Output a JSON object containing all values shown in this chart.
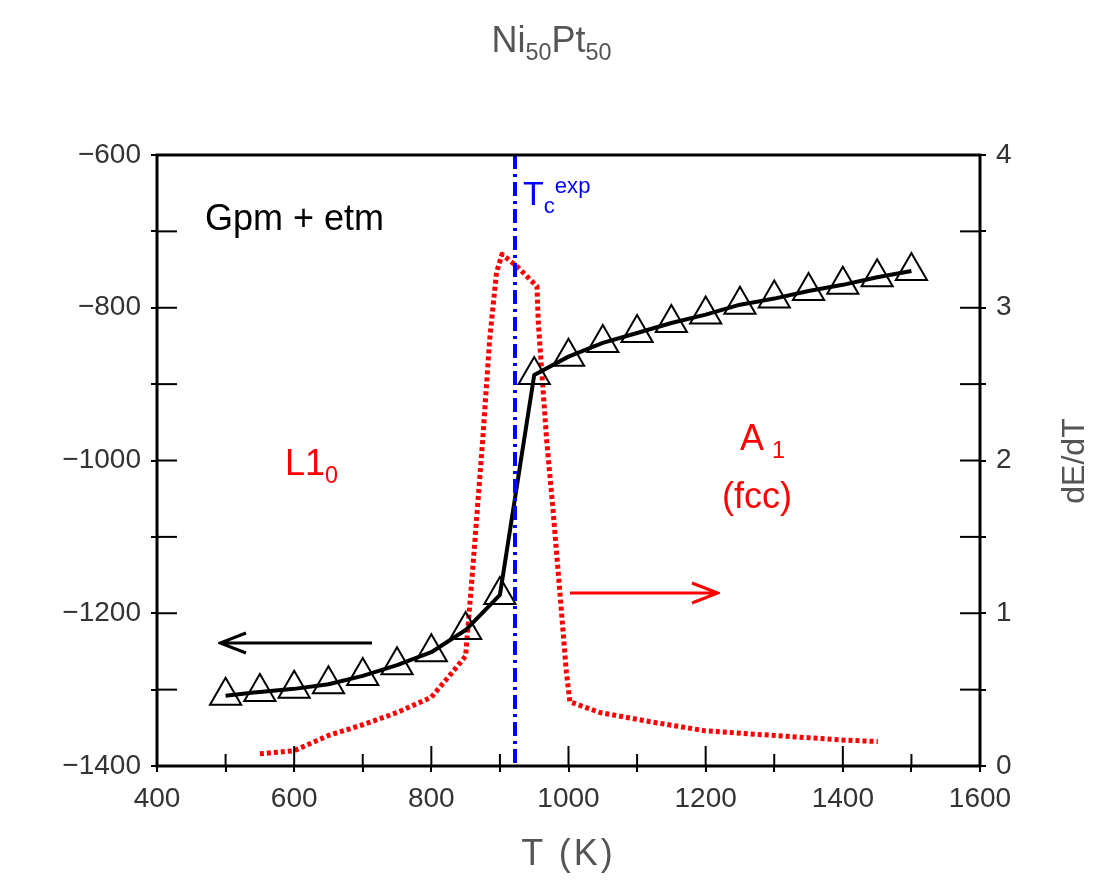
{
  "chart_data": {
    "type": "line",
    "title": "Ni$_{50}$Pt$_{50}$",
    "xlabel": "T (K)",
    "y2label": "dE/dT",
    "xlim": [
      400,
      1600
    ],
    "xticks": [
      400,
      {
        "value": 500,
        "label": null
      },
      600,
      {
        "value": 700,
        "label": null
      },
      800,
      {
        "value": 900,
        "label": null
      },
      1000,
      {
        "value": 1100,
        "label": null
      },
      1200,
      {
        "value": 1300,
        "label": null
      },
      1400,
      {
        "value": 1500,
        "label": null
      },
      1600
    ],
    "ylim": [
      -1400,
      -600
    ],
    "yticks": [
      -1400,
      {
        "value": -1300,
        "label": null
      },
      -1200,
      {
        "value": -1100,
        "label": null
      },
      -1000,
      {
        "value": -900,
        "label": null
      },
      -800,
      {
        "value": -700,
        "label": null
      },
      -600
    ],
    "y2lim": [
      0,
      4
    ],
    "y2ticks": [
      0,
      {
        "value": 0.5,
        "label": null
      },
      1,
      {
        "value": 1.5,
        "label": null
      },
      2,
      {
        "value": 2.5,
        "label": null
      },
      3,
      {
        "value": 3.5,
        "label": null
      },
      4
    ],
    "grid": false,
    "legend": false,
    "series": [
      {
        "type": "line",
        "color": "#000000",
        "marker": "triangle",
        "line_style": "solid",
        "x": [
          500,
          550,
          600,
          650,
          700,
          750,
          800,
          850,
          900,
          950,
          1000,
          1050,
          1100,
          1150,
          1200,
          1250,
          1300,
          1350,
          1400,
          1450,
          1500
        ],
        "values": [
          -1308,
          -1303,
          -1299,
          -1293,
          -1282,
          -1268,
          -1251,
          -1222,
          -1176,
          -888,
          -864,
          -846,
          -833,
          -820,
          -809,
          -796,
          -788,
          -778,
          -770,
          -760,
          -752
        ]
      },
      {
        "type": "line",
        "color": "#ff0000",
        "marker": "none",
        "line_style": "dotted",
        "axis": "y2",
        "x": [
          550,
          600,
          650,
          700,
          750,
          800,
          830,
          850,
          860,
          875,
          885,
          895,
          903,
          925,
          954,
          956,
          968,
          977,
          987,
          997,
          1002,
          1046,
          1119,
          1200,
          1264,
          1300,
          1400,
          1451
        ],
        "values": [
          0.08,
          0.1,
          0.2,
          0.27,
          0.35,
          0.45,
          0.61,
          0.72,
          1.27,
          2.14,
          2.79,
          3.23,
          3.35,
          3.27,
          3.14,
          2.9,
          2.14,
          1.7,
          1.16,
          0.61,
          0.42,
          0.35,
          0.29,
          0.23,
          0.21,
          0.2,
          0.17,
          0.16
        ]
      }
    ],
    "ref_lines": [
      {
        "axis": "x",
        "value": 922,
        "label": "T$_{c}$$^{exp}$",
        "color": "#0000ff",
        "line_style": "dashdot"
      }
    ],
    "annotations": [
      "Gpm + etm",
      "L1$_{0}$",
      "A $_{1}$",
      "(fcc)"
    ]
  }
}
